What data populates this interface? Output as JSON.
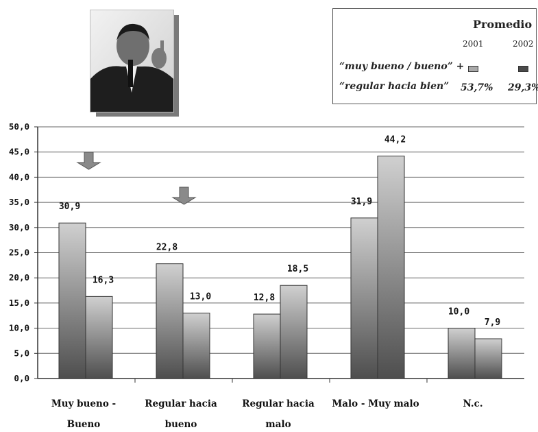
{
  "legend": {
    "title": "Promedio",
    "year1": "2001",
    "year2": "2002",
    "row1_label": "“muy bueno / bueno” +",
    "row2_label": "“regular hacia bien”",
    "value1": "53,7%",
    "value2": "29,3%",
    "color1": "#a9a9a9",
    "color2": "#4a4a4a"
  },
  "chart_data": {
    "type": "bar",
    "categories": [
      [
        "Muy bueno -",
        "Bueno"
      ],
      [
        "Regular hacia",
        "bueno"
      ],
      [
        "Regular hacia",
        "malo"
      ],
      [
        "Malo - Muy malo"
      ],
      [
        "N.c."
      ]
    ],
    "series": [
      {
        "name": "2001",
        "values": [
          30.9,
          22.8,
          12.8,
          31.9,
          10.0
        ]
      },
      {
        "name": "2002",
        "values": [
          16.3,
          13.0,
          18.5,
          44.2,
          7.9
        ]
      }
    ],
    "value_labels": [
      [
        "30,9",
        "22,8",
        "12,8",
        "31,9",
        "10,0"
      ],
      [
        "16,3",
        "13,0",
        "18,5",
        "44,2",
        "7,9"
      ]
    ],
    "ylim": [
      0,
      50
    ],
    "yticks": [
      "0,0",
      "5,0",
      "10,0",
      "15,0",
      "20,0",
      "25,0",
      "30,0",
      "35,0",
      "40,0",
      "45,0",
      "50,0"
    ],
    "grid": true,
    "bar_color_top": "#d0d0d0",
    "bar_color_bottom": "#4e4e4e"
  }
}
